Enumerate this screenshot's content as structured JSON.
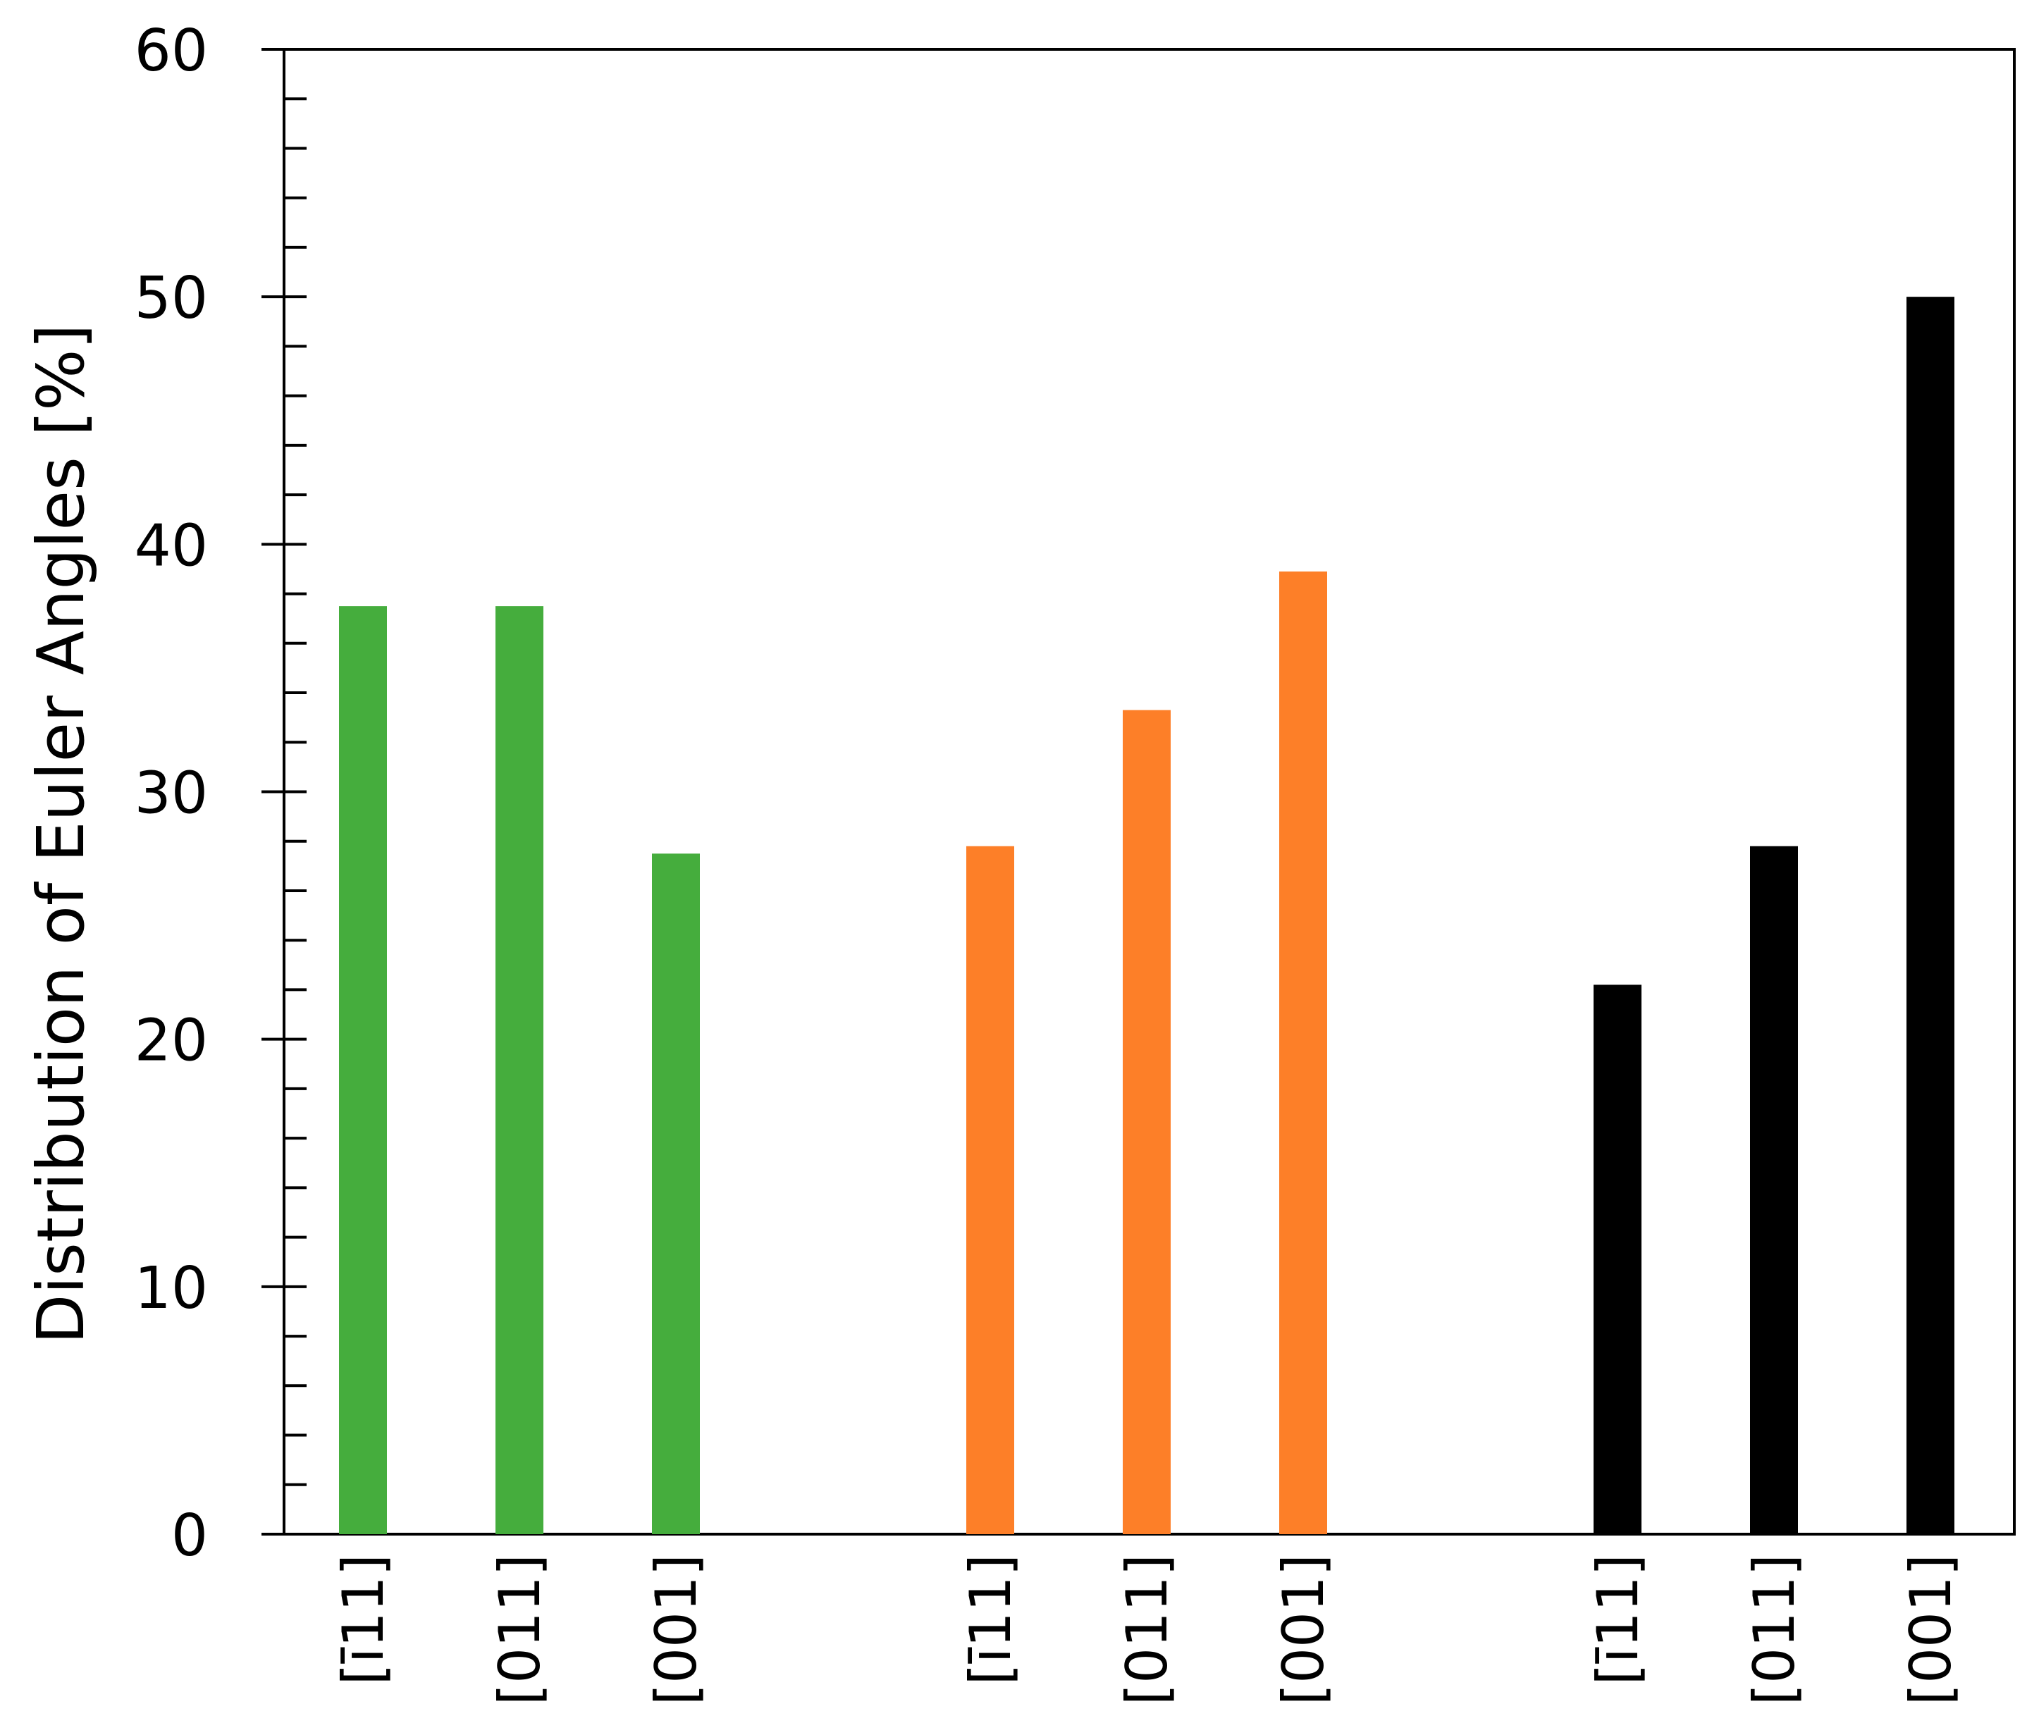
{
  "chart_data": {
    "type": "bar",
    "title": "",
    "xlabel": "",
    "ylabel": "Distribution of Euler Angles [%]",
    "ylim": [
      0,
      60
    ],
    "yticks": [
      0,
      10,
      20,
      30,
      40,
      50,
      60
    ],
    "minor_tick_step": 2,
    "grid": false,
    "legend": "none",
    "groups": [
      {
        "color": "#45ad3d",
        "bars": [
          {
            "label": "[ī11]",
            "value": 37.5
          },
          {
            "label": "[011]",
            "value": 37.5
          },
          {
            "label": "[001]",
            "value": 27.5
          }
        ]
      },
      {
        "color": "#fd7f28",
        "bars": [
          {
            "label": "[ī11]",
            "value": 27.8
          },
          {
            "label": "[011]",
            "value": 33.3
          },
          {
            "label": "[001]",
            "value": 38.9
          }
        ]
      },
      {
        "color": "#000000",
        "bars": [
          {
            "label": "[ī11]",
            "value": 22.2
          },
          {
            "label": "[011]",
            "value": 27.8
          },
          {
            "label": "[001]",
            "value": 50.0
          }
        ]
      }
    ]
  }
}
